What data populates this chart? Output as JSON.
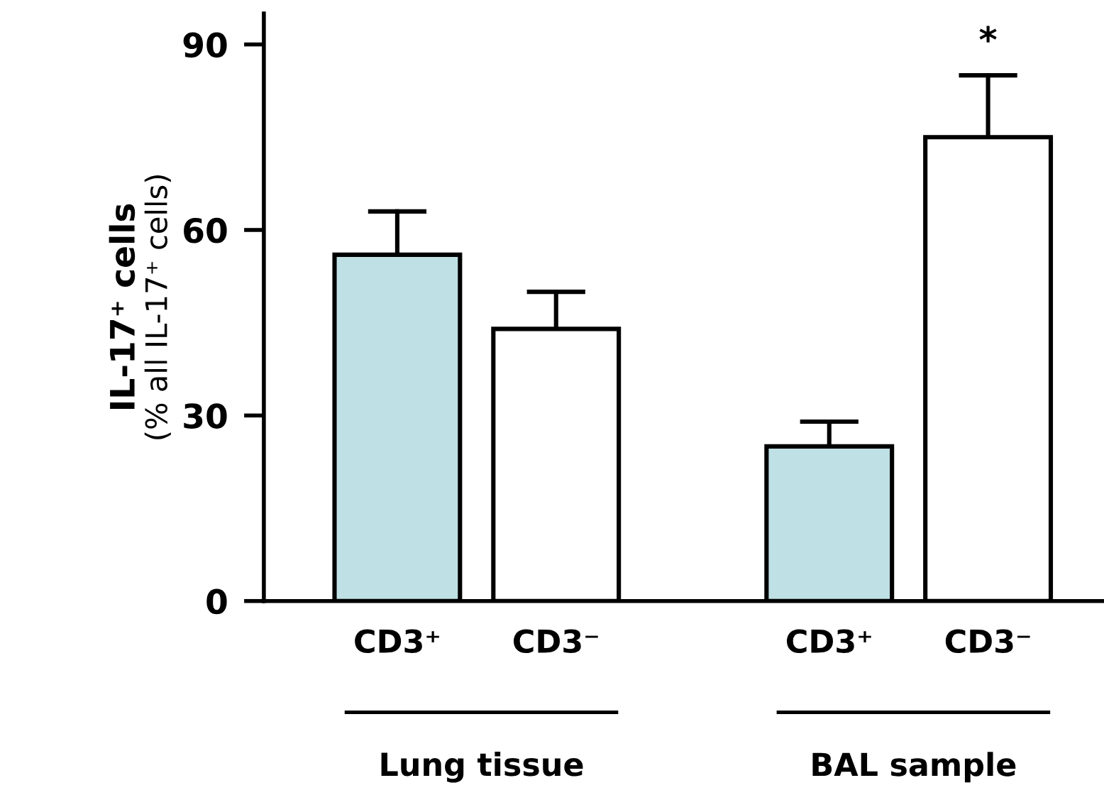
{
  "chart_data": {
    "type": "bar",
    "ylabel": "IL-17⁺ cells\n(% all IL-17⁺ cells)",
    "categories": [
      "CD3⁺",
      "CD3⁻",
      "CD3⁺",
      "CD3⁻"
    ],
    "values": [
      56,
      44,
      25,
      75
    ],
    "errors": [
      [
        56,
        63
      ],
      [
        44,
        50
      ],
      [
        25,
        29
      ],
      [
        75,
        85
      ]
    ],
    "colors": [
      "#bfe0e4",
      "#ffffff",
      "#bfe0e4",
      "#ffffff"
    ],
    "ylim": [
      0,
      95
    ],
    "yticks": [
      0,
      30,
      60,
      90
    ],
    "grid": false,
    "annotations": [
      "*",
      "Lung tissue",
      "BAL sample"
    ]
  }
}
